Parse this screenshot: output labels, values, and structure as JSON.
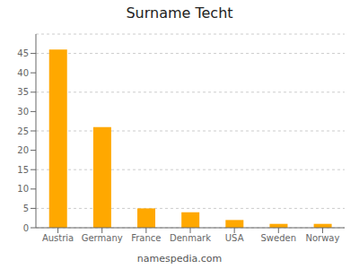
{
  "chart_data": {
    "type": "bar",
    "title": "Surname Techt",
    "categories": [
      "Austria",
      "Germany",
      "France",
      "Denmark",
      "USA",
      "Sweden",
      "Norway"
    ],
    "values": [
      46,
      26,
      5,
      4,
      2,
      1,
      1
    ],
    "color": "#FFA800",
    "ylim": [
      0,
      50
    ],
    "yticks": [
      0,
      5,
      10,
      15,
      20,
      25,
      30,
      35,
      40,
      45
    ],
    "grid": true,
    "annotations": [
      "namespedia.com"
    ]
  }
}
